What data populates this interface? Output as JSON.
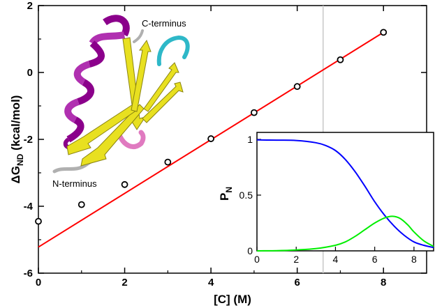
{
  "chart_data": [
    {
      "type": "scatter",
      "xlabel": "[C] (M)",
      "ylabel": "ΔG",
      "ylabel_subscript": "ND",
      "ylabel_unit": "(kcal/mol)",
      "xlim": [
        0,
        9
      ],
      "ylim": [
        -6,
        2
      ],
      "xticks": [
        0,
        2,
        4,
        6,
        8
      ],
      "yticks": [
        -6,
        -4,
        -2,
        0,
        2
      ],
      "grid": false,
      "series": [
        {
          "kind": "points",
          "marker": "open-circle",
          "color": "#000000",
          "x": [
            0,
            1,
            2,
            3,
            4,
            5,
            6,
            7,
            8
          ],
          "y": [
            -4.45,
            -3.95,
            -3.35,
            -2.68,
            -1.98,
            -1.2,
            -0.42,
            0.38,
            1.2
          ]
        },
        {
          "kind": "fit-line",
          "color": "#ff0000",
          "x": [
            0,
            8
          ],
          "y": [
            -5.22,
            1.2
          ]
        }
      ],
      "marker_line": {
        "x": 6.6,
        "color": "#c8c8c8"
      },
      "annotations": [
        "C-terminus",
        "N-terminus"
      ],
      "image": "protein ribbon structure"
    },
    {
      "type": "line",
      "inset": true,
      "ylabel": "P",
      "ylabel_subscript": "N",
      "xlim": [
        0,
        9
      ],
      "ylim": [
        0,
        1
      ],
      "xticks": [
        0,
        2,
        4,
        6,
        8
      ],
      "yticks": [
        0,
        0.5,
        1
      ],
      "series": [
        {
          "color": "#0000ff",
          "x": [
            0,
            1,
            2,
            3,
            3.5,
            4,
            4.5,
            5,
            5.5,
            6,
            6.5,
            7,
            7.5,
            8,
            8.5,
            9
          ],
          "y": [
            0.995,
            0.993,
            0.99,
            0.97,
            0.945,
            0.9,
            0.82,
            0.71,
            0.58,
            0.44,
            0.32,
            0.22,
            0.14,
            0.08,
            0.05,
            0.03
          ]
        },
        {
          "color": "#00ee00",
          "x": [
            0,
            1,
            2,
            3,
            4,
            4.5,
            5,
            5.5,
            6,
            6.5,
            6.9,
            7.3,
            7.7,
            8,
            8.5,
            9
          ],
          "y": [
            0.0,
            0.002,
            0.008,
            0.02,
            0.05,
            0.08,
            0.13,
            0.19,
            0.25,
            0.295,
            0.31,
            0.29,
            0.23,
            0.17,
            0.09,
            0.04
          ]
        }
      ]
    }
  ],
  "colors": {
    "helix": "#8b008b",
    "sheet": "#e8e020",
    "loop_cyan": "#2eb8c8",
    "loop_pink": "#e07ac0",
    "coil": "#b0b0b0"
  }
}
